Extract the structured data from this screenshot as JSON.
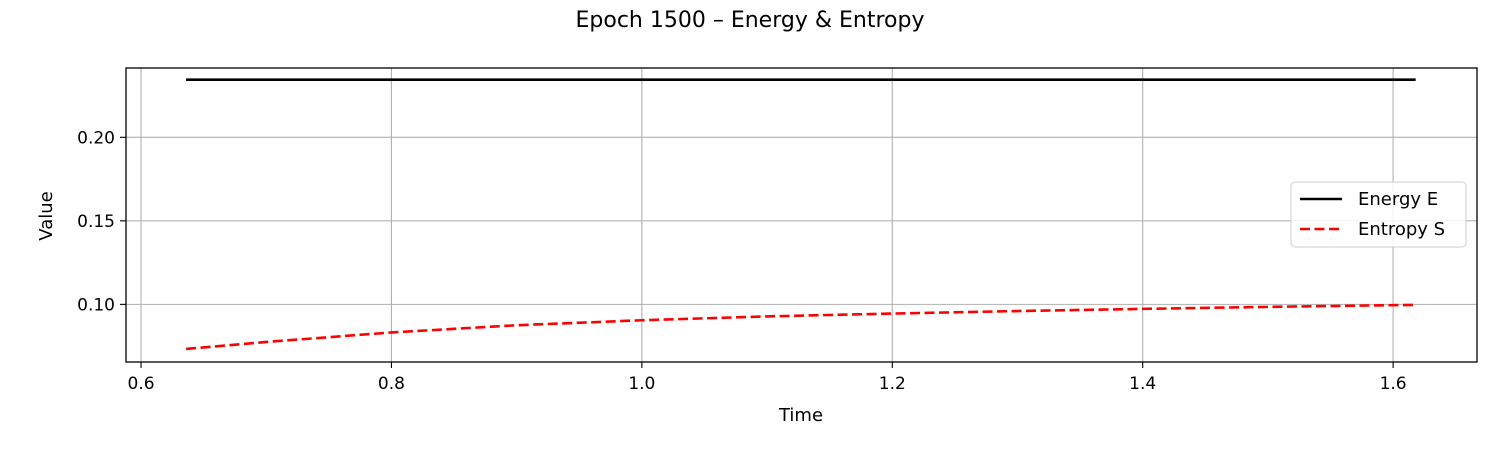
{
  "chart_data": {
    "type": "line",
    "title": "Epoch 1500 – Energy & Entropy",
    "xlabel": "Time",
    "ylabel": "Value",
    "xlim": [
      0.588,
      1.667
    ],
    "ylim": [
      0.0655,
      0.2415
    ],
    "xticks": [
      0.6,
      0.8,
      1.0,
      1.2,
      1.4,
      1.6
    ],
    "xtick_labels": [
      "0.6",
      "0.8",
      "1.0",
      "1.2",
      "1.4",
      "1.6"
    ],
    "yticks": [
      0.1,
      0.15,
      0.2
    ],
    "ytick_labels": [
      "0.10",
      "0.15",
      "0.20"
    ],
    "grid": true,
    "legend_position": "center-right",
    "series": [
      {
        "name": "Energy E",
        "color": "#000000",
        "style": "solid",
        "x": [
          0.636,
          0.8,
          1.0,
          1.2,
          1.4,
          1.618
        ],
        "y": [
          0.2345,
          0.2345,
          0.2345,
          0.2345,
          0.2345,
          0.2345
        ]
      },
      {
        "name": "Entropy S",
        "color": "#ff0000",
        "style": "dashed",
        "x": [
          0.636,
          0.7,
          0.8,
          0.9,
          1.0,
          1.1,
          1.2,
          1.3,
          1.4,
          1.5,
          1.618
        ],
        "y": [
          0.0733,
          0.0775,
          0.0832,
          0.0875,
          0.0905,
          0.0928,
          0.0945,
          0.096,
          0.0973,
          0.0985,
          0.0997
        ]
      }
    ]
  }
}
